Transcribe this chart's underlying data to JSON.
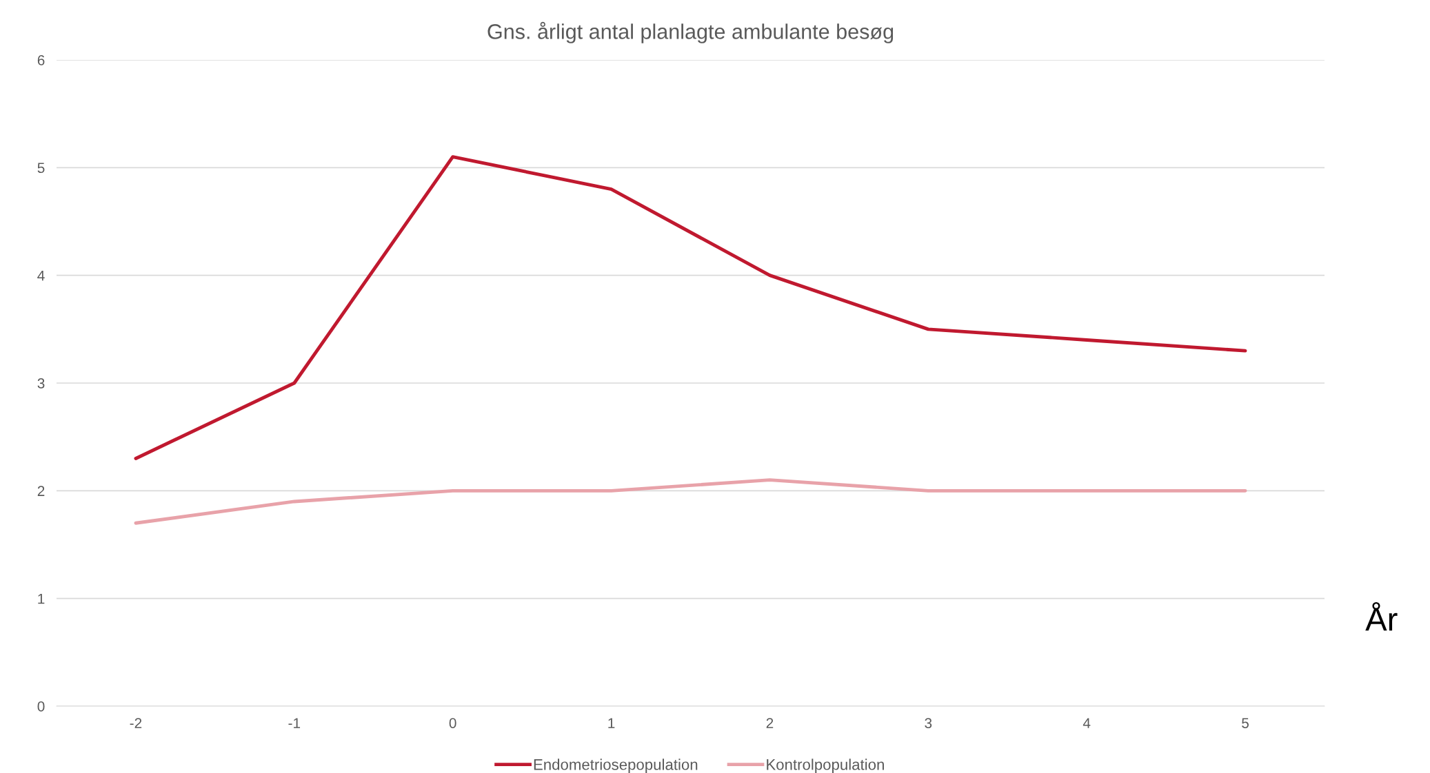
{
  "chart_data": {
    "type": "line",
    "title": "Gns. årligt antal planlagte ambulante besøg",
    "xlabel": "År",
    "categories": [
      "-2",
      "-1",
      "0",
      "1",
      "2",
      "3",
      "4",
      "5"
    ],
    "series": [
      {
        "name": "Endometriosepopulation",
        "color": "#c0192f",
        "values": [
          2.3,
          3.0,
          5.1,
          4.8,
          4.0,
          3.5,
          3.4,
          3.3
        ]
      },
      {
        "name": "Kontrolpopulation",
        "color": "#e8a2a9",
        "values": [
          1.7,
          1.9,
          2.0,
          2.0,
          2.1,
          2.0,
          2.0,
          2.0
        ]
      }
    ],
    "ylim": [
      0,
      6
    ],
    "yticks": [
      0,
      1,
      2,
      3,
      4,
      5,
      6
    ],
    "grid": "y",
    "legend": "bottom",
    "marker": "none",
    "line_style": "solid"
  }
}
